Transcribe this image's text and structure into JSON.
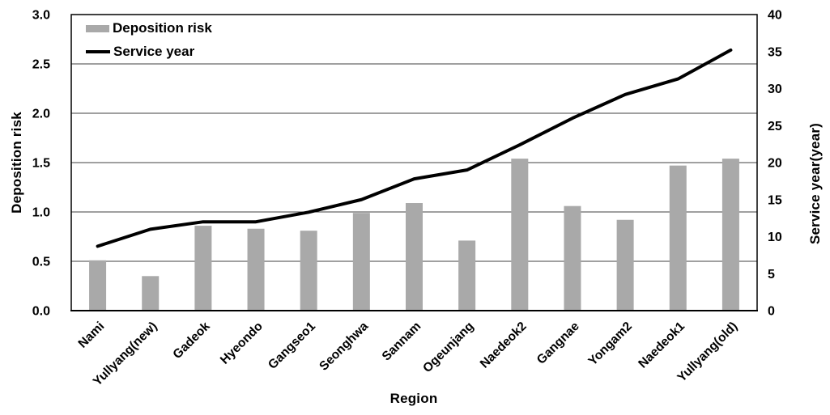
{
  "chart_data": {
    "type": "bar",
    "subtype": "bar-and-line-dual-axis",
    "categories": [
      "Nami",
      "Yullyang(new)",
      "Gadeok",
      "Hyeondo",
      "Gangseo1",
      "Seonghwa",
      "Sannam",
      "Ogeunjang",
      "Naedeok2",
      "Gangnae",
      "Yongam2",
      "Naedeok1",
      "Yullyang(old)"
    ],
    "series": [
      {
        "name": "Deposition risk",
        "type": "bar",
        "axis": "left",
        "color": "#a9a9a9",
        "values": [
          0.51,
          0.35,
          0.86,
          0.83,
          0.81,
          0.99,
          1.09,
          0.71,
          1.54,
          1.06,
          0.92,
          1.47,
          1.54
        ]
      },
      {
        "name": "Service year",
        "type": "line",
        "axis": "right",
        "color": "#000000",
        "values": [
          8.7,
          11.0,
          12.0,
          12.0,
          13.3,
          15.0,
          17.8,
          19.0,
          22.4,
          26.0,
          29.2,
          31.3,
          35.2
        ]
      }
    ],
    "left_axis": {
      "title": "Deposition risk",
      "min": 0,
      "max": 3,
      "step": 0.5,
      "tick_labels": [
        "0.0",
        "0.5",
        "1.0",
        "1.5",
        "2.0",
        "2.5",
        "3.0"
      ]
    },
    "right_axis": {
      "title": "Service year(year)",
      "min": 0,
      "max": 40,
      "step": 5,
      "tick_labels": [
        "0",
        "5",
        "10",
        "15",
        "20",
        "25",
        "30",
        "35",
        "40"
      ]
    },
    "x_axis": {
      "title": "Region",
      "label_rotation_deg": -45
    },
    "legend": {
      "position": "top-left-inside",
      "items": [
        "Deposition risk",
        "Service year"
      ]
    },
    "grid": {
      "horizontal": true,
      "vertical": false,
      "color": "#404040"
    },
    "plot_border_color": "#000000",
    "background": "#ffffff"
  }
}
